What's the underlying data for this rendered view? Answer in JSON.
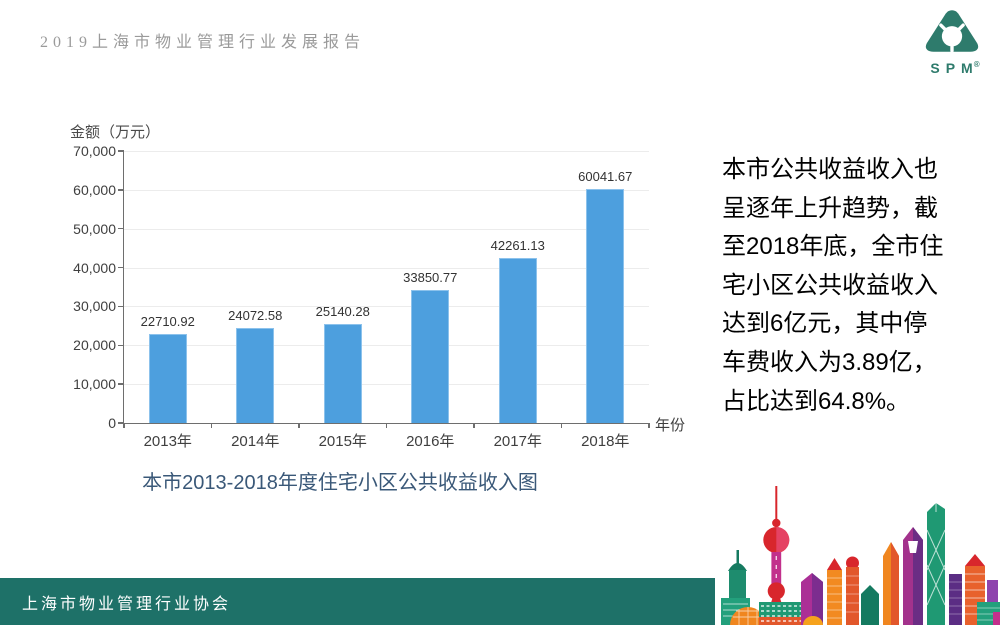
{
  "header": {
    "report_title": "2019上海市物业管理行业发展报告",
    "logo_text": "SPM",
    "logo_reg": "®"
  },
  "chart_data": {
    "type": "bar",
    "categories": [
      "2013年",
      "2014年",
      "2015年",
      "2016年",
      "2017年",
      "2018年"
    ],
    "values": [
      22710.92,
      24072.58,
      25140.28,
      33850.77,
      42261.13,
      60041.67
    ],
    "title": "本市2013-2018年度住宅小区公共收益收入图",
    "ylabel": "金额（万元）",
    "xlabel": "年份",
    "ylim": [
      0,
      70000
    ],
    "ytick_values": [
      0,
      10000,
      20000,
      30000,
      40000,
      50000,
      60000,
      70000
    ],
    "ytick_labels": [
      "0",
      "10,000",
      "20,000",
      "30,000",
      "40,000",
      "50,000",
      "60,000",
      "70,000"
    ],
    "grid": true,
    "legend": "none",
    "bar_color": "#4D9FDE"
  },
  "commentary": {
    "text": "本市公共收益收入也\n呈逐年上升趋势，截\n至2018年底，全市住\n宅小区公共收益收入\n达到6亿元，其中停\n车费收入为3.89亿，\n占比达到64.8%。"
  },
  "footer": {
    "organization": "上海市物业管理行业协会"
  },
  "colors": {
    "accent_blue": "#4D9FDE",
    "logo_teal": "#2E7B6C",
    "footer_teal": "#1E7168",
    "caption_navy": "#3A5878",
    "grid_line": "#ECECEC",
    "axis": "#6E6E6E"
  }
}
